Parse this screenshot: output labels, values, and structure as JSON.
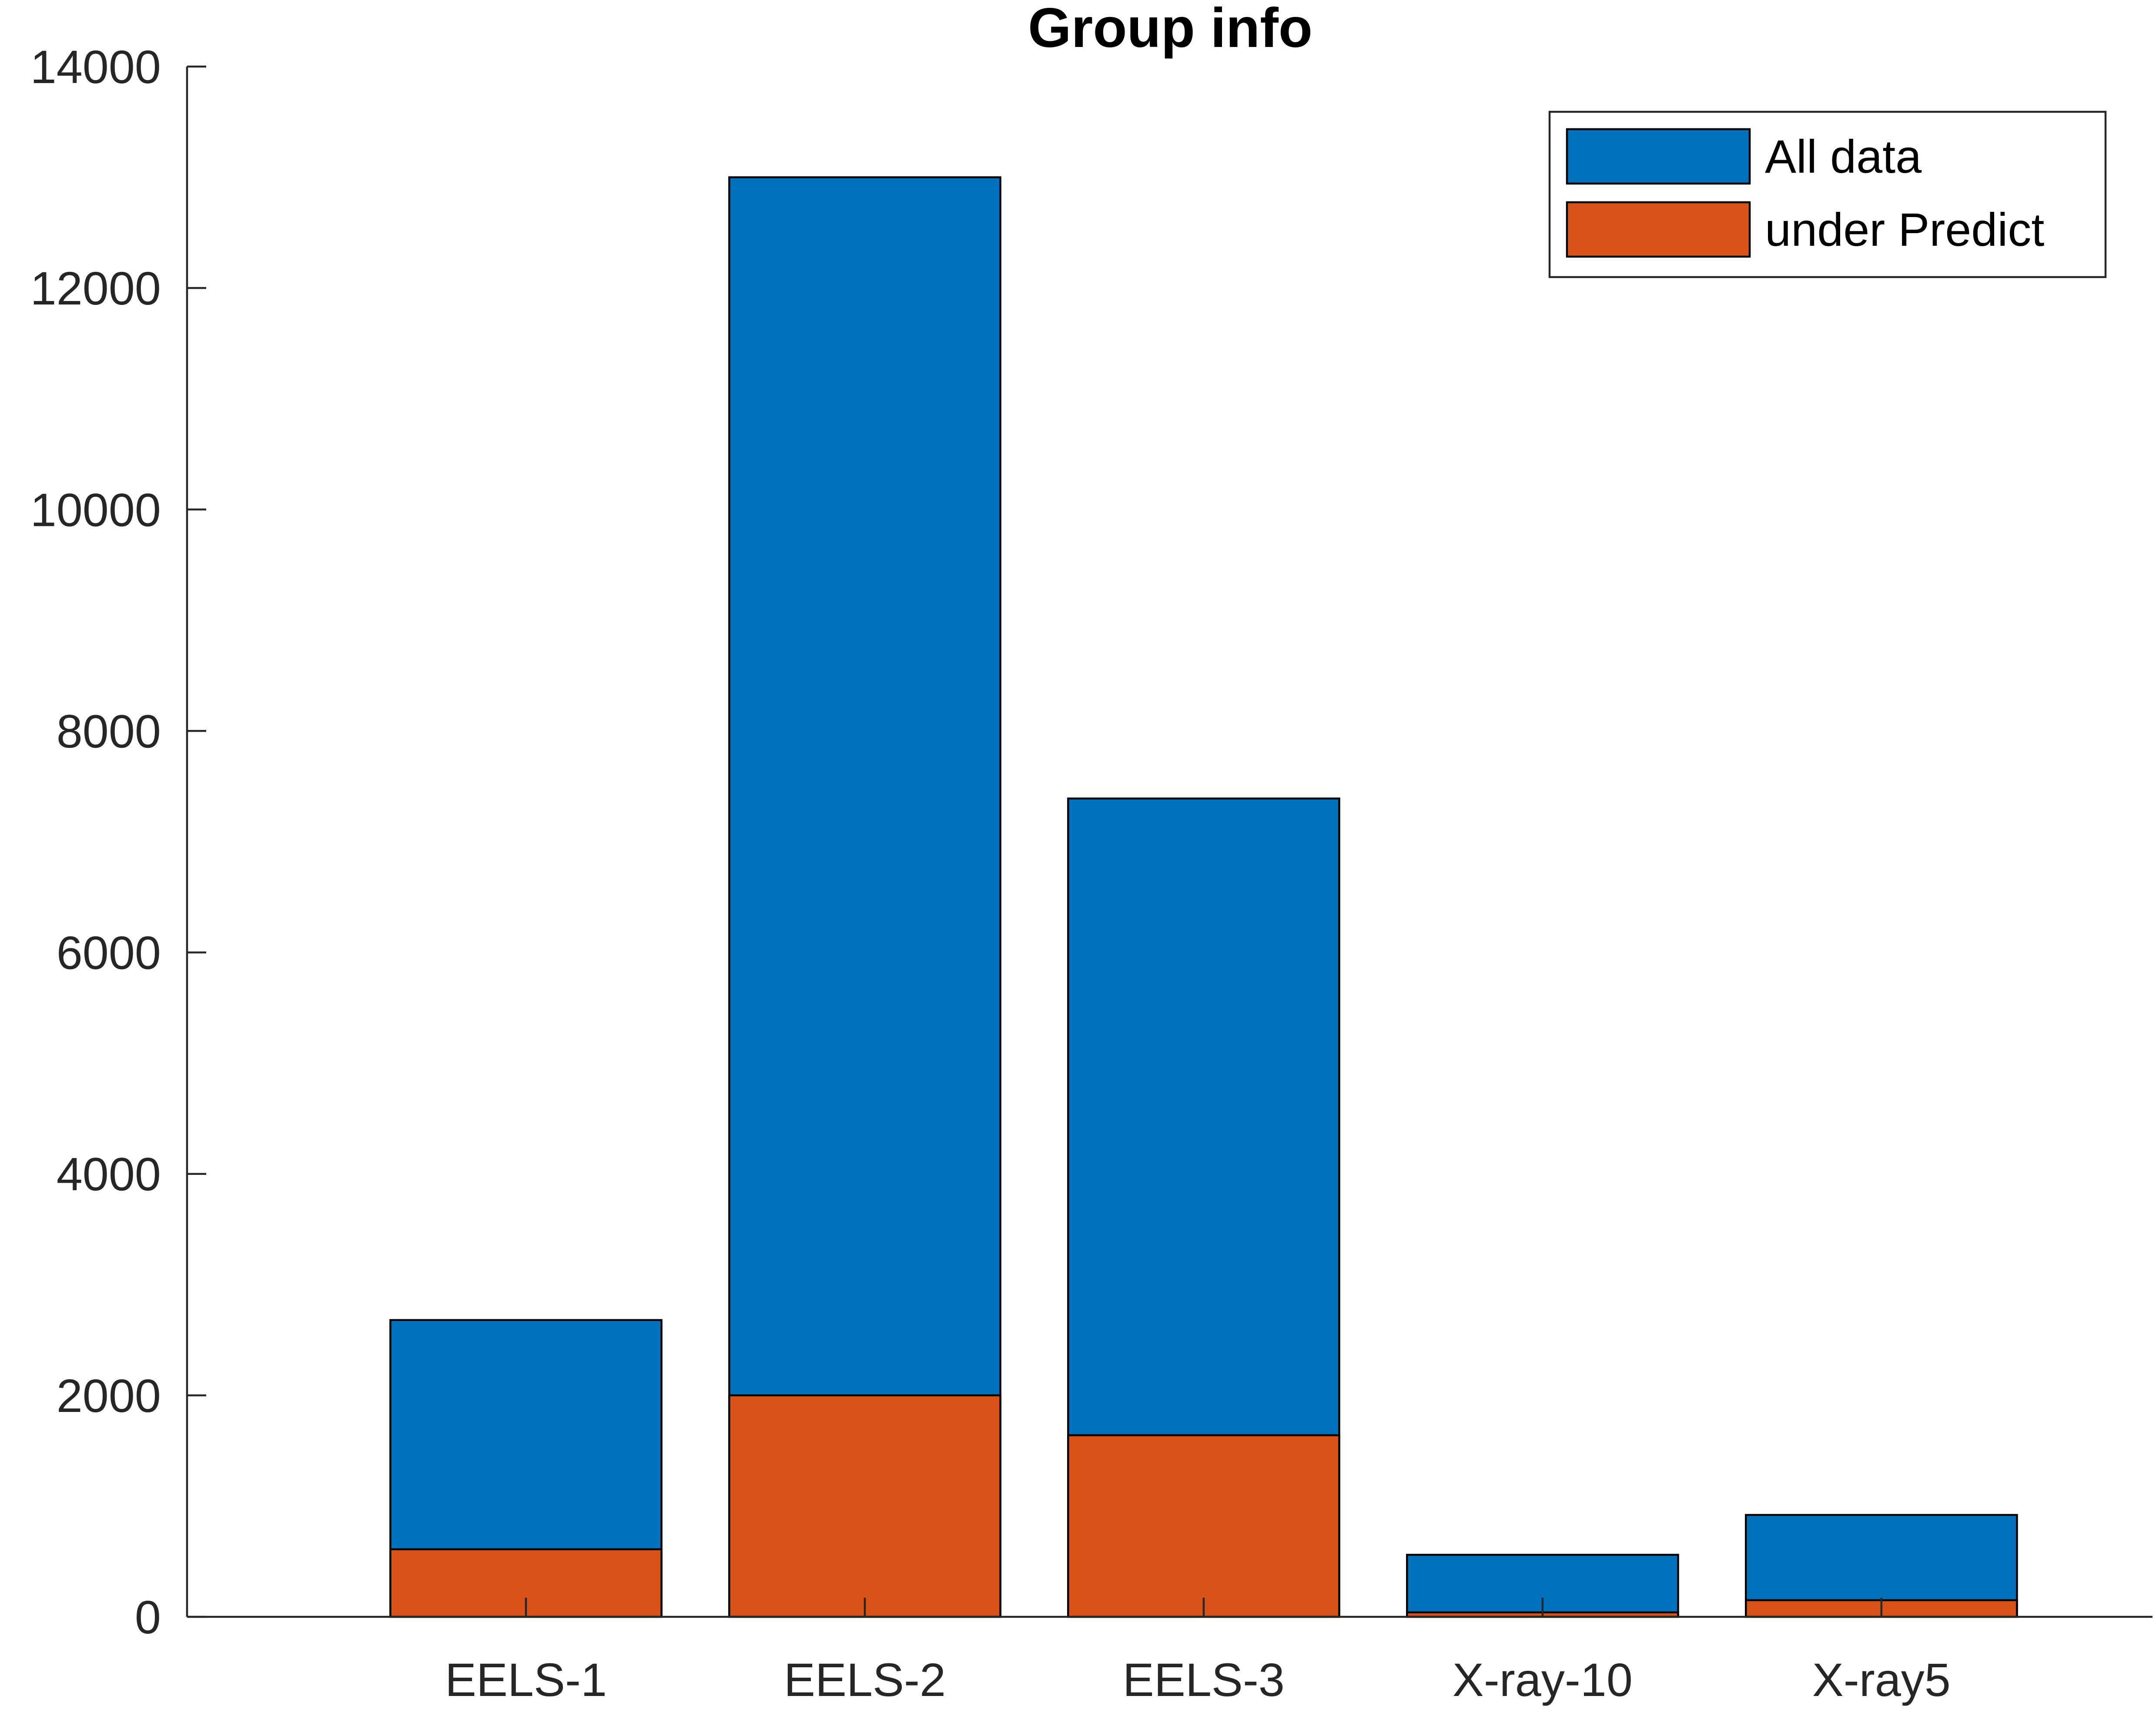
{
  "chart_data": {
    "type": "bar",
    "stacking": "overlaid",
    "title": "Group info",
    "xlabel": "",
    "ylabel": "",
    "categories": [
      "EELS-1",
      "EELS-2",
      "EELS-3",
      "X-ray-10",
      "X-ray5"
    ],
    "series": [
      {
        "name": "All data",
        "color": "#0072BD",
        "values": [
          2680,
          13000,
          7390,
          560,
          920
        ]
      },
      {
        "name": "under Predict",
        "color": "#D95319",
        "values": [
          610,
          2000,
          1640,
          40,
          150
        ]
      }
    ],
    "ylim": [
      0,
      14000
    ],
    "yticks": [
      "0",
      "2000",
      "4000",
      "6000",
      "8000",
      "10000",
      "12000",
      "14000"
    ],
    "grid": false,
    "legend_position": "top-right"
  }
}
